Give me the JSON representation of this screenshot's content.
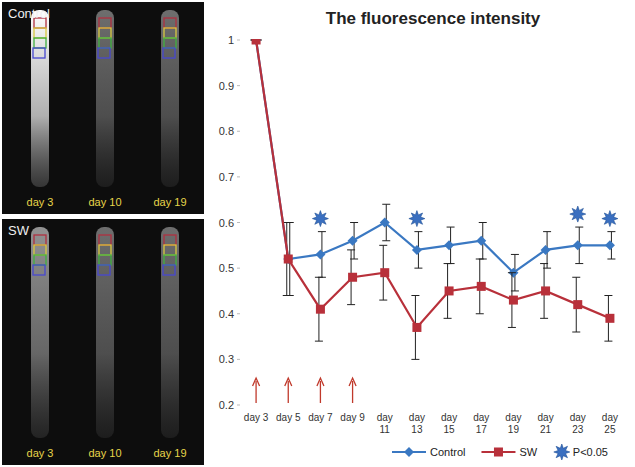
{
  "chart_data": {
    "type": "line",
    "title": "The fluorescence intensity",
    "categories": [
      "day 3",
      "day 5",
      "day 7",
      "day 9",
      "day 11",
      "day 13",
      "day 15",
      "day 17",
      "day 19",
      "day 21",
      "day 23",
      "day 25"
    ],
    "series": [
      {
        "name": "Control",
        "color": "#3a78c2",
        "marker": "diamond",
        "line_style": "solid",
        "values": [
          1,
          0.52,
          0.53,
          0.56,
          0.6,
          0.54,
          0.55,
          0.56,
          0.49,
          0.54,
          0.55,
          0.55
        ],
        "errors": [
          0,
          0.08,
          0.05,
          0.04,
          0.04,
          0.04,
          0.04,
          0.04,
          0.04,
          0.04,
          0.04,
          0.03
        ]
      },
      {
        "name": "SW",
        "color": "#b8303a",
        "marker": "square",
        "line_style": "solid",
        "values": [
          1,
          0.52,
          0.41,
          0.48,
          0.49,
          0.37,
          0.45,
          0.46,
          0.43,
          0.45,
          0.42,
          0.39
        ],
        "errors": [
          0,
          0.08,
          0.07,
          0.06,
          0.06,
          0.07,
          0.06,
          0.06,
          0.06,
          0.06,
          0.06,
          0.05
        ]
      }
    ],
    "ylim": [
      0.2,
      1
    ],
    "yticks": [
      0.2,
      0.3,
      0.4,
      0.5,
      0.6,
      0.7,
      0.8,
      0.9,
      1
    ],
    "grid": false,
    "legend": "bottom",
    "significant_categories": [
      "day 7",
      "day 13",
      "day 23",
      "day 25"
    ],
    "significance_label": "P<0.05",
    "treatment_categories": [
      "day 3",
      "day 5",
      "day 7",
      "day 9"
    ]
  },
  "image_panels": [
    {
      "label": "Control",
      "days": [
        "day 3",
        "day 10",
        "day 19"
      ]
    },
    {
      "label": "SW",
      "days": [
        "day 3",
        "day 10",
        "day 19"
      ]
    }
  ]
}
